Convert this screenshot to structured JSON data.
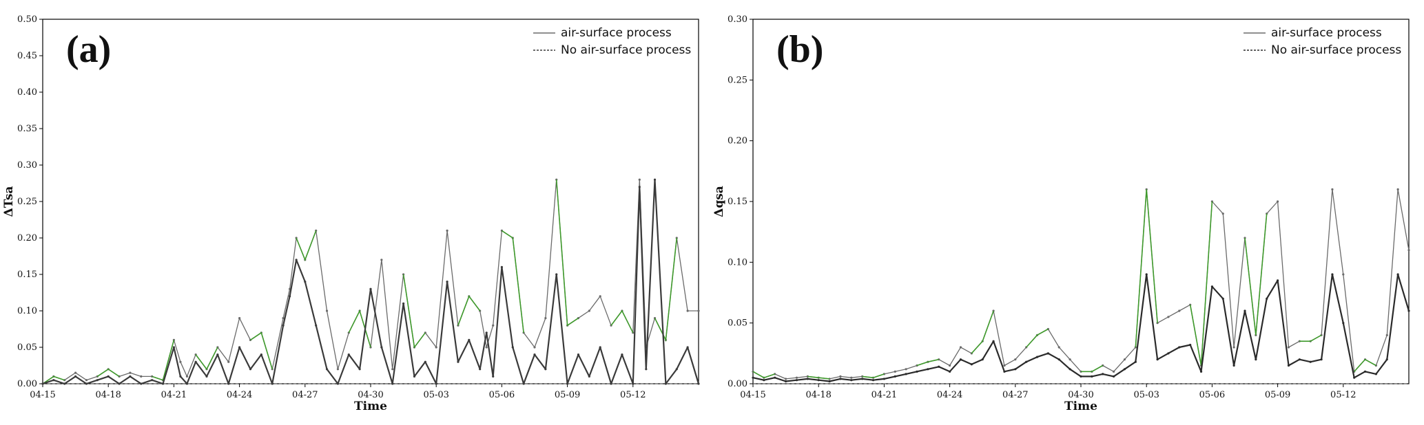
{
  "chart_data": [
    {
      "type": "line",
      "panel_label": "(a)",
      "xlabel": "Time",
      "ylabel": "ΔTsa",
      "ylim": [
        0,
        0.5
      ],
      "yticks": [
        "0.00",
        "0.05",
        "0.10",
        "0.15",
        "0.20",
        "0.25",
        "0.30",
        "0.35",
        "0.40",
        "0.45",
        "0.50"
      ],
      "xlim": [
        0,
        30
      ],
      "xticks": [
        {
          "label": "04-15",
          "x": 0
        },
        {
          "label": "04-18",
          "x": 3
        },
        {
          "label": "04-21",
          "x": 6
        },
        {
          "label": "04-24",
          "x": 9
        },
        {
          "label": "04-27",
          "x": 12
        },
        {
          "label": "04-30",
          "x": 15
        },
        {
          "label": "05-03",
          "x": 18
        },
        {
          "label": "05-06",
          "x": 21
        },
        {
          "label": "05-09",
          "x": 24
        },
        {
          "label": "05-12",
          "x": 27
        }
      ],
      "legend": [
        "air-surface process",
        "No air-surface process"
      ],
      "legend_position": "top-right",
      "colors": {
        "primary": "#3a3a3a",
        "secondary": "#6a6a6a",
        "highlight": "#3f9a2c"
      },
      "series": [
        {
          "name": "air-surface process",
          "x": [
            0,
            0.5,
            1,
            1.5,
            2,
            2.5,
            3,
            3.5,
            4,
            4.5,
            5,
            5.5,
            6,
            6.3,
            6.6,
            7,
            7.5,
            8,
            8.5,
            9,
            9.5,
            10,
            10.5,
            11,
            11.3,
            11.6,
            12,
            12.5,
            13,
            13.5,
            14,
            14.5,
            15,
            15.5,
            16,
            16.5,
            17,
            17.5,
            18,
            18.5,
            19,
            19.5,
            20,
            20.3,
            20.6,
            21,
            21.5,
            22,
            22.5,
            23,
            23.5,
            24,
            24.5,
            25,
            25.5,
            26,
            26.5,
            27,
            27.3,
            27.6,
            28,
            28.5,
            29,
            29.5,
            30
          ],
          "y": [
            0,
            0.01,
            0.005,
            0.015,
            0.005,
            0.01,
            0.02,
            0.01,
            0.015,
            0.01,
            0.01,
            0.005,
            0.06,
            0.03,
            0.01,
            0.04,
            0.02,
            0.05,
            0.03,
            0.09,
            0.06,
            0.07,
            0.02,
            0.09,
            0.13,
            0.2,
            0.17,
            0.21,
            0.1,
            0.02,
            0.07,
            0.1,
            0.05,
            0.17,
            0.02,
            0.15,
            0.05,
            0.07,
            0.05,
            0.21,
            0.08,
            0.12,
            0.1,
            0.05,
            0.08,
            0.21,
            0.2,
            0.07,
            0.05,
            0.09,
            0.28,
            0.08,
            0.09,
            0.1,
            0.12,
            0.08,
            0.1,
            0.07,
            0.28,
            0.05,
            0.09,
            0.06,
            0.2,
            0.1,
            0.1
          ]
        },
        {
          "name": "No air-surface process",
          "x": [
            0,
            0.5,
            1,
            1.5,
            2,
            2.5,
            3,
            3.5,
            4,
            4.5,
            5,
            5.5,
            6,
            6.3,
            6.6,
            7,
            7.5,
            8,
            8.5,
            9,
            9.5,
            10,
            10.5,
            11,
            11.3,
            11.6,
            12,
            12.5,
            13,
            13.5,
            14,
            14.5,
            15,
            15.5,
            16,
            16.5,
            17,
            17.5,
            18,
            18.5,
            19,
            19.5,
            20,
            20.3,
            20.6,
            21,
            21.5,
            22,
            22.5,
            23,
            23.5,
            24,
            24.5,
            25,
            25.5,
            26,
            26.5,
            27,
            27.3,
            27.6,
            28,
            28.5,
            29,
            29.5,
            30
          ],
          "y": [
            0,
            0.005,
            0,
            0.01,
            0,
            0.005,
            0.01,
            0,
            0.01,
            0,
            0.005,
            0,
            0.05,
            0.01,
            0,
            0.03,
            0.01,
            0.04,
            0,
            0.05,
            0.02,
            0.04,
            0,
            0.08,
            0.12,
            0.17,
            0.14,
            0.08,
            0.02,
            0,
            0.04,
            0.02,
            0.13,
            0.05,
            0,
            0.11,
            0.01,
            0.03,
            0,
            0.14,
            0.03,
            0.06,
            0.02,
            0.07,
            0.01,
            0.16,
            0.05,
            0,
            0.04,
            0.02,
            0.15,
            0,
            0.04,
            0.01,
            0.05,
            0,
            0.04,
            0,
            0.27,
            0.02,
            0.28,
            0,
            0.02,
            0.05,
            0
          ]
        }
      ]
    },
    {
      "type": "line",
      "panel_label": "(b)",
      "xlabel": "Time",
      "ylabel": "Δqsa",
      "ylim": [
        0,
        0.3
      ],
      "yticks": [
        "0.00",
        "0.05",
        "0.10",
        "0.15",
        "0.20",
        "0.25",
        "0.30"
      ],
      "xlim": [
        0,
        30
      ],
      "xticks": [
        {
          "label": "04-15",
          "x": 0
        },
        {
          "label": "04-18",
          "x": 3
        },
        {
          "label": "04-21",
          "x": 6
        },
        {
          "label": "04-24",
          "x": 9
        },
        {
          "label": "04-27",
          "x": 12
        },
        {
          "label": "04-30",
          "x": 15
        },
        {
          "label": "05-03",
          "x": 18
        },
        {
          "label": "05-06",
          "x": 21
        },
        {
          "label": "05-09",
          "x": 24
        },
        {
          "label": "05-12",
          "x": 27
        }
      ],
      "legend": [
        "air-surface process",
        "No air-surface process"
      ],
      "legend_position": "top-right",
      "colors": {
        "primary": "#2a2a2a",
        "secondary": "#6a6a6a",
        "highlight": "#3f9a2c"
      },
      "series": [
        {
          "name": "air-surface process",
          "x": [
            0,
            0.5,
            1,
            1.5,
            2,
            2.5,
            3,
            3.5,
            4,
            4.5,
            5,
            5.5,
            6,
            6.5,
            7,
            7.5,
            8,
            8.5,
            9,
            9.5,
            10,
            10.5,
            11,
            11.5,
            12,
            12.5,
            13,
            13.5,
            14,
            14.5,
            15,
            15.5,
            16,
            16.5,
            17,
            17.5,
            18,
            18.5,
            19,
            19.5,
            20,
            20.5,
            21,
            21.5,
            22,
            22.5,
            23,
            23.5,
            24,
            24.5,
            25,
            25.5,
            26,
            26.5,
            27,
            27.5,
            28,
            28.5,
            29,
            29.5,
            30
          ],
          "y": [
            0.01,
            0.005,
            0.008,
            0.004,
            0.005,
            0.006,
            0.005,
            0.004,
            0.006,
            0.005,
            0.006,
            0.005,
            0.008,
            0.01,
            0.012,
            0.015,
            0.018,
            0.02,
            0.015,
            0.03,
            0.025,
            0.035,
            0.06,
            0.015,
            0.02,
            0.03,
            0.04,
            0.045,
            0.03,
            0.02,
            0.01,
            0.01,
            0.015,
            0.01,
            0.02,
            0.03,
            0.16,
            0.05,
            0.055,
            0.06,
            0.065,
            0.015,
            0.15,
            0.14,
            0.03,
            0.12,
            0.04,
            0.14,
            0.15,
            0.03,
            0.035,
            0.035,
            0.04,
            0.16,
            0.09,
            0.01,
            0.02,
            0.015,
            0.04,
            0.16,
            0.11
          ]
        },
        {
          "name": "No air-surface process",
          "x": [
            0,
            0.5,
            1,
            1.5,
            2,
            2.5,
            3,
            3.5,
            4,
            4.5,
            5,
            5.5,
            6,
            6.5,
            7,
            7.5,
            8,
            8.5,
            9,
            9.5,
            10,
            10.5,
            11,
            11.5,
            12,
            12.5,
            13,
            13.5,
            14,
            14.5,
            15,
            15.5,
            16,
            16.5,
            17,
            17.5,
            18,
            18.5,
            19,
            19.5,
            20,
            20.5,
            21,
            21.5,
            22,
            22.5,
            23,
            23.5,
            24,
            24.5,
            25,
            25.5,
            26,
            26.5,
            27,
            27.5,
            28,
            28.5,
            29,
            29.5,
            30
          ],
          "y": [
            0.005,
            0.003,
            0.005,
            0.002,
            0.003,
            0.004,
            0.003,
            0.002,
            0.004,
            0.003,
            0.004,
            0.003,
            0.004,
            0.006,
            0.008,
            0.01,
            0.012,
            0.014,
            0.01,
            0.02,
            0.016,
            0.02,
            0.035,
            0.01,
            0.012,
            0.018,
            0.022,
            0.025,
            0.02,
            0.012,
            0.006,
            0.006,
            0.008,
            0.006,
            0.012,
            0.018,
            0.09,
            0.02,
            0.025,
            0.03,
            0.032,
            0.01,
            0.08,
            0.07,
            0.015,
            0.06,
            0.02,
            0.07,
            0.085,
            0.015,
            0.02,
            0.018,
            0.02,
            0.09,
            0.05,
            0.005,
            0.01,
            0.008,
            0.02,
            0.09,
            0.06
          ]
        }
      ]
    }
  ]
}
